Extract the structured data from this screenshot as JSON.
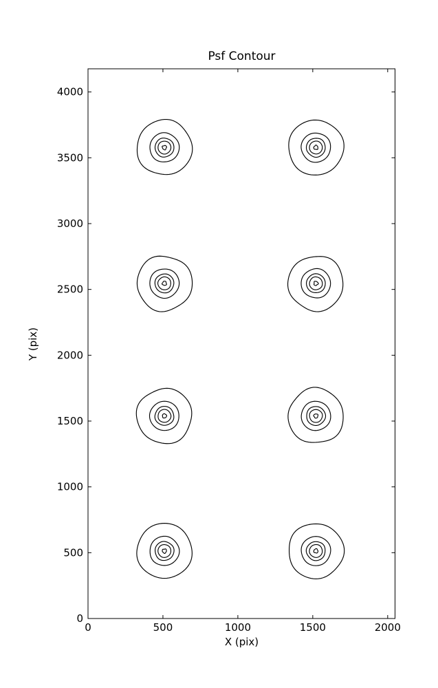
{
  "figure": {
    "background_color": "#ffffff",
    "line_color": "#000000",
    "title": "Psf Contour"
  },
  "chart_data": {
    "type": "contour",
    "title": "Psf Contour",
    "xlabel": "X (pix)",
    "ylabel": "Y (pix)",
    "xlim": [
      0,
      2049
    ],
    "ylim": [
      0,
      4176
    ],
    "xticks": [
      0,
      500,
      1000,
      1500,
      2000
    ],
    "yticks": [
      0,
      500,
      1000,
      1500,
      2000,
      2500,
      3000,
      3500,
      4000
    ],
    "grid": false,
    "legend": null,
    "n_levels": 5,
    "psf_centers": [
      [
        510,
        513
      ],
      [
        1521,
        513
      ],
      [
        510,
        1539
      ],
      [
        1521,
        1539
      ],
      [
        510,
        2546
      ],
      [
        1521,
        2546
      ],
      [
        510,
        3578
      ],
      [
        1521,
        3578
      ]
    ],
    "contour_radii_x": [
      184,
      98,
      63,
      43,
      14
    ],
    "contour_radii_y": [
      209,
      111,
      72,
      49,
      16
    ]
  }
}
